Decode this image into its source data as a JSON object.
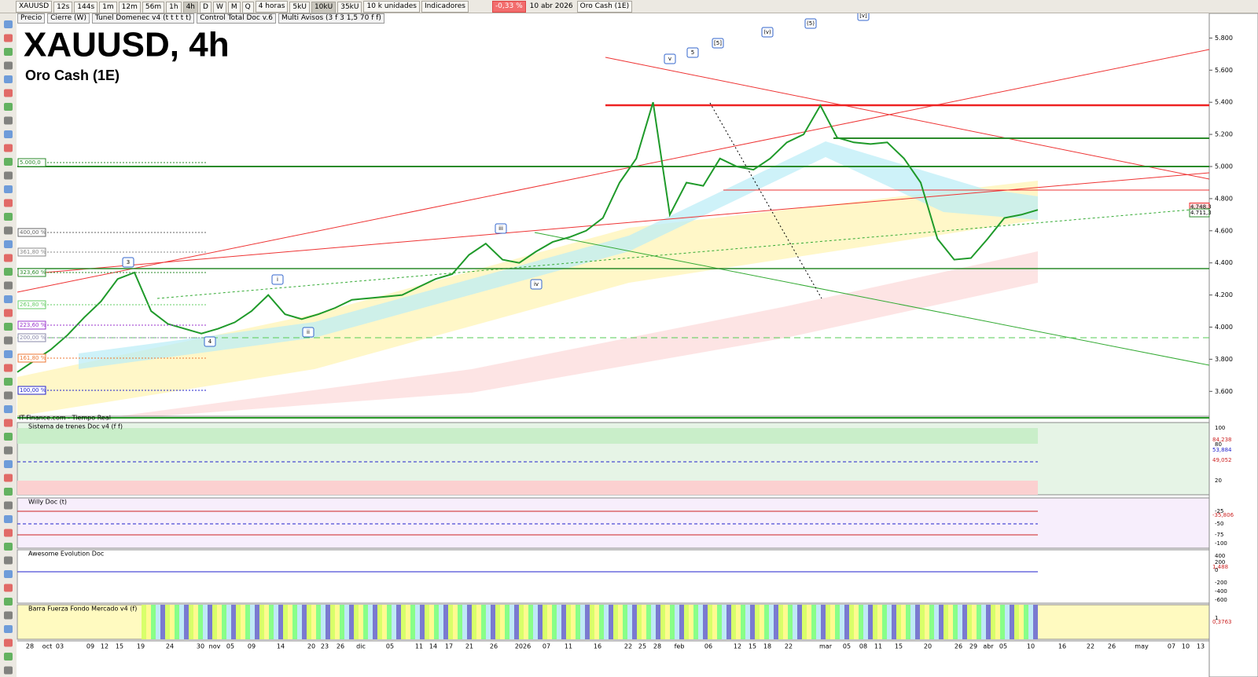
{
  "toolbar": {
    "symbol": "XAUUSD",
    "timeframes": [
      "12s",
      "144s",
      "1m",
      "12m",
      "56m",
      "1h",
      "4h",
      "D",
      "W",
      "M",
      "Q"
    ],
    "period": "4 horas",
    "units": [
      "5kU",
      "10kU",
      "35kU"
    ],
    "unit_select": "10 k unidades",
    "indicators": "Indicadores",
    "change": "-0,33 %",
    "date": "10 abr 2026",
    "instrument": "Oro Cash (1E)"
  },
  "legend_bar": [
    "Precio",
    "Cierre (W)",
    "Tunel Domenec v4 (t t t t t)",
    "Control Total Doc v.6",
    "Multi Avisos (3 f 3 1,5 70 f f)"
  ],
  "chart": {
    "title": "XAUUSD, 4h",
    "subtitle": "Oro Cash (1E)",
    "source": "IT-Finance.com - Tiempo Real",
    "ylim": [
      3445,
      5939
    ],
    "yticks": [
      {
        "value": 5800,
        "label": "5.800"
      },
      {
        "value": 5600,
        "label": "5.600"
      },
      {
        "value": 5400,
        "label": "5.400"
      },
      {
        "value": 5200,
        "label": "5.200"
      },
      {
        "value": 5000,
        "label": "5.000"
      },
      {
        "value": 4800,
        "label": "4.800"
      },
      {
        "value": 4600,
        "label": "4.600"
      },
      {
        "value": 4400,
        "label": "4.400"
      },
      {
        "value": 4200,
        "label": "4.200"
      },
      {
        "value": 4000,
        "label": "4.000"
      },
      {
        "value": 3800,
        "label": "3.800"
      },
      {
        "value": 3600,
        "label": "3.600"
      }
    ],
    "price_color": "#1f9a2a",
    "price": [
      3720,
      3790,
      3860,
      3950,
      4060,
      4160,
      4300,
      4340,
      4100,
      4020,
      3990,
      3960,
      3990,
      4030,
      4100,
      4200,
      4080,
      4050,
      4080,
      4120,
      4170,
      4180,
      4190,
      4200,
      4250,
      4300,
      4330,
      4450,
      4520,
      4420,
      4400,
      4470,
      4530,
      4560,
      4600,
      4680,
      4900,
      5050,
      5400,
      4700,
      4900,
      4880,
      5050,
      5000,
      4980,
      5050,
      5150,
      5200,
      5380,
      5180,
      5150,
      5140,
      5150,
      5050,
      4900,
      4550,
      4420,
      4430,
      4550,
      4680,
      4700,
      4730
    ],
    "last_labels": [
      {
        "value": 4748.3,
        "label": "4.748,3"
      },
      {
        "value": 4711.3,
        "label": "4.711,3"
      }
    ],
    "fib_labels": [
      "5.000,0",
      "400,00 %",
      "361,80 %",
      "323,60 %",
      "261,80 %",
      "223,60 %",
      "200,00 %",
      "161,80 %",
      "100,00 %"
    ],
    "wave_labels": [
      "3",
      "4",
      "i",
      "ii",
      "iii",
      "iv",
      "v",
      "5",
      "[5]",
      "(v)",
      "(5)",
      "[v]"
    ]
  },
  "panels": [
    {
      "title": "Sistema de trenes Doc v4 (f f)",
      "ticks": [
        "100",
        "80",
        "20"
      ],
      "value_labels": [
        "84,238",
        "53,884",
        "49,052"
      ]
    },
    {
      "title": "Willy Doc (t)",
      "ticks": [
        "-25",
        "-50",
        "-75",
        "-100"
      ],
      "value_labels": [
        "-35,806"
      ]
    },
    {
      "title": "Awesome Evolution Doc",
      "ticks": [
        "400",
        "200",
        "0",
        "-200",
        "-400",
        "-600"
      ],
      "value_labels": [
        "1,488"
      ]
    },
    {
      "title": "Barra Fuerza Fondo Mercado v4 (f)",
      "ticks": [
        "1"
      ],
      "value_labels": [
        "0,3763"
      ]
    }
  ],
  "x_labels": [
    "28",
    "oct",
    "03",
    "09",
    "12",
    "15",
    "19",
    "24",
    "30",
    "nov",
    "05",
    "09",
    "14",
    "20",
    "23",
    "26",
    "dic",
    "05",
    "11",
    "14",
    "17",
    "21",
    "26",
    "2026",
    "07",
    "11",
    "16",
    "22",
    "25",
    "28",
    "feb",
    "06",
    "12",
    "15",
    "18",
    "22",
    "mar",
    "05",
    "08",
    "11",
    "15",
    "20",
    "26",
    "29",
    "abr",
    "05",
    "10",
    "16",
    "22",
    "26",
    "may",
    "07",
    "10",
    "13"
  ]
}
